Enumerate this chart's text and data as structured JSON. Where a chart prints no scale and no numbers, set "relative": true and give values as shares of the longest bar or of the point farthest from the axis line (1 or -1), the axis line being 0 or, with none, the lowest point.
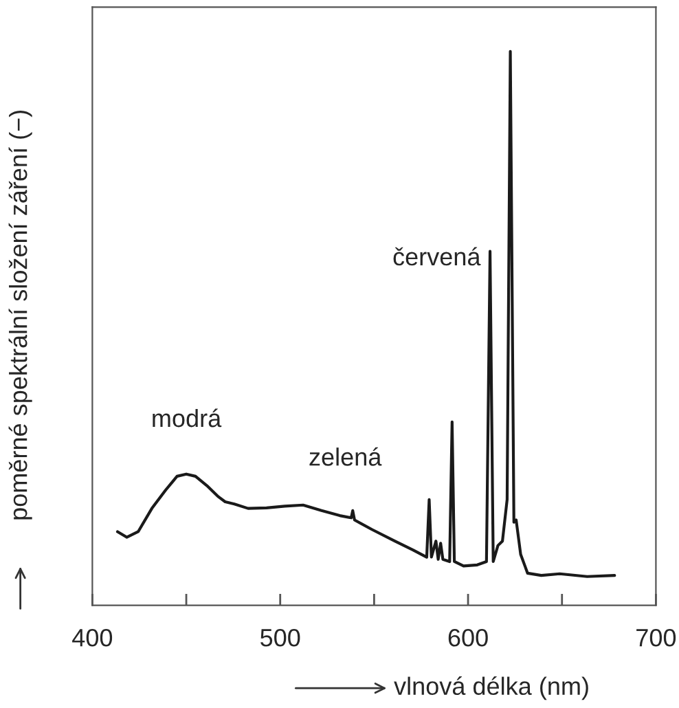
{
  "chart_data": {
    "type": "line",
    "relative": true,
    "xlabel": "vlnová délka (nm)",
    "ylabel": "poměrné spektrální složení záření (−)",
    "tick_labels": "x",
    "grid": false,
    "marker": "none",
    "line_style": "solid",
    "xlim": [
      400,
      700
    ],
    "xticks": [
      400,
      {
        "value": 450,
        "label": null
      },
      500,
      {
        "value": 550,
        "label": null
      },
      600,
      {
        "value": 650,
        "label": null
      },
      700
    ],
    "series": [
      {
        "color": "#1a1a1a",
        "x": [
          413.4,
          418.3,
          424.4,
          431.7,
          439.0,
          445.1,
          450.0,
          454.9,
          461.0,
          467.1,
          470.7,
          475.6,
          482.9,
          492.7,
          502.4,
          512.2,
          522.0,
          531.7,
          537.8,
          538.6,
          539.6,
          548.8,
          561.0,
          570.7,
          578.0,
          579.3,
          580.5,
          582.9,
          584.1,
          585.4,
          586.6,
          590.2,
          591.5,
          592.7,
          597.6,
          604.9,
          609.8,
          611.7,
          613.4,
          615.9,
          618.3,
          620.8,
          622.5,
          624.4,
          625.6,
          628.0,
          631.7,
          639.0,
          648.8,
          663.4,
          678.0
        ],
        "values": [
          0.133,
          0.123,
          0.133,
          0.175,
          0.208,
          0.233,
          0.237,
          0.233,
          0.216,
          0.196,
          0.187,
          0.183,
          0.175,
          0.176,
          0.179,
          0.181,
          0.171,
          0.162,
          0.158,
          0.171,
          0.154,
          0.137,
          0.116,
          0.1,
          0.087,
          0.191,
          0.087,
          0.116,
          0.083,
          0.112,
          0.083,
          0.079,
          0.331,
          0.079,
          0.071,
          0.073,
          0.079,
          0.639,
          0.079,
          0.108,
          0.116,
          0.191,
          1.0,
          0.15,
          0.154,
          0.092,
          0.058,
          0.054,
          0.057,
          0.052,
          0.054
        ]
      }
    ],
    "annotations": [
      {
        "text": "modrá",
        "x": 450.0,
        "y": 0.237
      },
      {
        "text": "zelená",
        "x": 512.2,
        "y": 0.181
      },
      {
        "text": "červená",
        "x": 611.7,
        "y": 0.639
      }
    ]
  }
}
